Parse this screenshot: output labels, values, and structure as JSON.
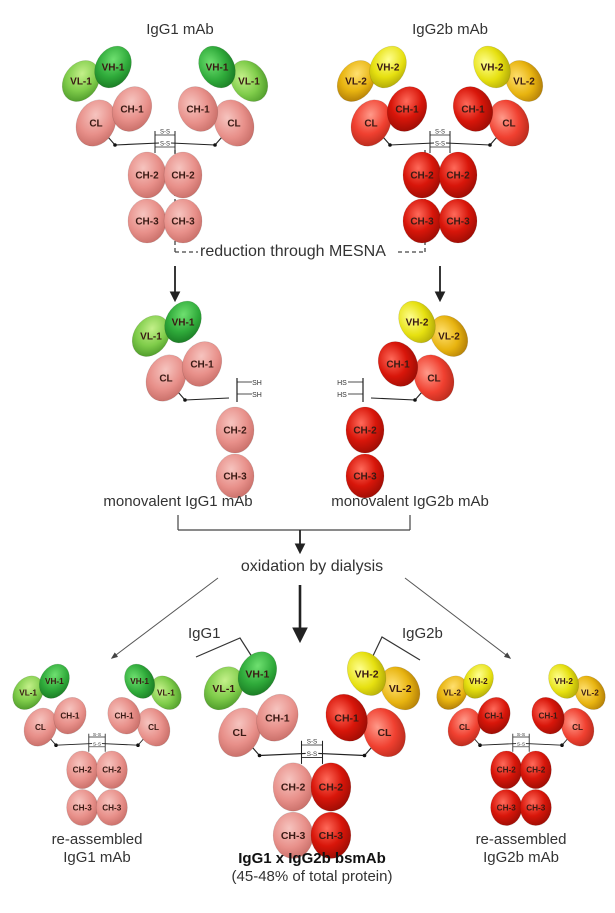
{
  "titles": {
    "igg1_mab": "IgG1 mAb",
    "igg2b_mab": "IgG2b mAb"
  },
  "steps": {
    "reduction": "reduction through MESNA",
    "oxidation": "oxidation by dialysis"
  },
  "products": {
    "monovalent_igg1": "monovalent IgG1 mAb",
    "monovalent_igg2b": "monovalent IgG2b mAb",
    "reassembled_igg1_line1": "re-assembled",
    "reassembled_igg1_line2": "IgG1 mAb",
    "reassembled_igg2b_line1": "re-assembled",
    "reassembled_igg2b_line2": "IgG2b mAb",
    "bsmab": "IgG1 x IgG2b bsmAb",
    "bsmab_yield": "(45-48% of total protein)"
  },
  "brackets": {
    "igg1": "IgG1",
    "igg2b": "IgG2b"
  },
  "domains": {
    "vh1": "VH-1",
    "vl1": "VL-1",
    "vh2": "VH-2",
    "vl2": "VL-2",
    "ch1": "CH-1",
    "cl": "CL",
    "ch2": "CH-2",
    "ch3": "CH-3"
  },
  "bonds": {
    "ss": "S-S",
    "sh": "SH",
    "hs": "HS"
  },
  "colors": {
    "igg1_constant": "#e8908a",
    "igg1_variable_heavy": "#2faa3a",
    "igg1_variable_light": "#7fcc4a",
    "igg2b_constant_heavy": "#d8160a",
    "igg2b_constant_light": "#f04030",
    "igg2b_variable_heavy": "#e6e010",
    "igg2b_variable_light": "#e8b410",
    "arrow": "#222222"
  }
}
